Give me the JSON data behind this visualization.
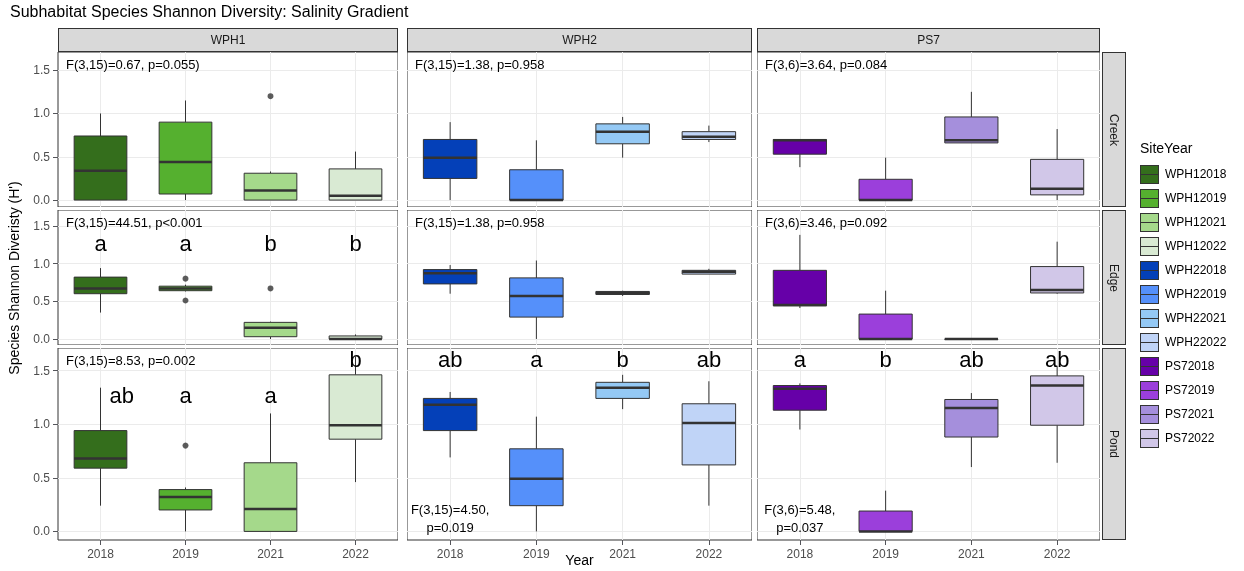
{
  "chart_data": [
    {
      "type": "box",
      "title": "Subhabitat Species Shannon Diversity: Salinity Gradient",
      "subtitle": "WPH1",
      "legend": "right",
      "legend_title": "SiteYear",
      "categories": [
        "2018",
        "2019",
        "2021",
        "2022"
      ],
      "ylim": [
        -0.08,
        1.71
      ],
      "yticks": [
        {
          "value": 0,
          "label": "0.0"
        },
        {
          "value": 0.5,
          "label": "0.5"
        },
        {
          "value": 1,
          "label": "1.0"
        },
        {
          "value": 1.5,
          "label": "1.5"
        }
      ],
      "grid": true,
      "tick_labels": "y",
      "series": [
        {
          "name": "WPH12018",
          "color": "#346e1c",
          "boxes": [
            {
              "low": 0,
              "q1": 0,
              "median": 0.34,
              "q3": 0.74,
              "high": 1.0
            },
            null,
            null,
            null
          ]
        },
        {
          "name": "WPH12019",
          "color": "#55b02f",
          "boxes": [
            null,
            {
              "low": 0,
              "q1": 0.07,
              "median": 0.44,
              "q3": 0.9,
              "high": 1.15
            },
            null,
            null
          ]
        },
        {
          "name": "WPH12021",
          "color": "#a5d98b",
          "boxes": [
            null,
            null,
            {
              "low": 0,
              "q1": 0,
              "median": 0.11,
              "q3": 0.31,
              "high": 0.33,
              "outliers": [
                1.2
              ]
            },
            null
          ]
        },
        {
          "name": "WPH12022",
          "color": "#d9ead3",
          "boxes": [
            null,
            null,
            null,
            {
              "low": 0,
              "q1": 0,
              "median": 0.05,
              "q3": 0.36,
              "high": 0.56
            }
          ]
        }
      ],
      "annotations": [
        "F(3,15)=0.67, p=0.055)"
      ]
    },
    {
      "type": "box",
      "subtitle": "WPH2",
      "legend": "right",
      "categories": [
        "2018",
        "2019",
        "2021",
        "2022"
      ],
      "ylim": [
        -0.08,
        1.71
      ],
      "yticks": [
        0,
        0.5,
        1,
        1.5
      ],
      "grid": true,
      "tick_labels": false,
      "series": [
        {
          "name": "WPH22018",
          "color": "#0440b8",
          "boxes": [
            {
              "low": 0,
              "q1": 0.25,
              "median": 0.49,
              "q3": 0.7,
              "high": 0.9
            },
            null,
            null,
            null
          ]
        },
        {
          "name": "WPH22019",
          "color": "#5590fa",
          "boxes": [
            null,
            {
              "low": 0,
              "q1": 0,
              "median": 0,
              "q3": 0.35,
              "high": 0.69
            },
            null,
            null
          ]
        },
        {
          "name": "WPH22021",
          "color": "#94c9f5",
          "boxes": [
            null,
            null,
            {
              "low": 0.49,
              "q1": 0.65,
              "median": 0.79,
              "q3": 0.88,
              "high": 0.96
            },
            null
          ]
        },
        {
          "name": "WPH22022",
          "color": "#c0d4f7",
          "boxes": [
            null,
            null,
            null,
            {
              "low": 0.67,
              "q1": 0.7,
              "median": 0.73,
              "q3": 0.79,
              "high": 0.86
            }
          ]
        }
      ],
      "annotations": [
        "F(3,15)=1.38, p=0.958"
      ]
    },
    {
      "type": "box",
      "subtitle": "PS7",
      "y2label": "Creek",
      "legend": "right",
      "categories": [
        "2018",
        "2019",
        "2021",
        "2022"
      ],
      "ylim": [
        -0.08,
        1.71
      ],
      "yticks": [
        0,
        0.5,
        1,
        1.5
      ],
      "grid": true,
      "tick_labels": false,
      "series": [
        {
          "name": "PS72018",
          "color": "#6600a8",
          "boxes": [
            {
              "low": 0.38,
              "q1": 0.53,
              "median": 0.69,
              "q3": 0.7,
              "high": 0.7
            },
            null,
            null,
            null
          ]
        },
        {
          "name": "PS72019",
          "color": "#9b3fdb",
          "boxes": [
            null,
            {
              "low": 0,
              "q1": 0,
              "median": 0,
              "q3": 0.24,
              "high": 0.49
            },
            null,
            null
          ]
        },
        {
          "name": "PS72021",
          "color": "#a58fdc",
          "boxes": [
            null,
            null,
            {
              "low": 0.66,
              "q1": 0.66,
              "median": 0.69,
              "q3": 0.96,
              "high": 1.25
            },
            null
          ]
        },
        {
          "name": "PS72022",
          "color": "#d1c7e8",
          "boxes": [
            null,
            null,
            null,
            {
              "low": 0,
              "q1": 0.06,
              "median": 0.13,
              "q3": 0.47,
              "high": 0.82
            }
          ]
        }
      ],
      "annotations": [
        "F(3,6)=3.64, p=0.084"
      ]
    },
    {
      "type": "box",
      "ylabel": "Species Shannon Diveristy (H')",
      "categories": [
        "2018",
        "2019",
        "2021",
        "2022"
      ],
      "ylim": [
        -0.08,
        1.71
      ],
      "yticks": [
        {
          "value": 0,
          "label": "0.0"
        },
        {
          "value": 0.5,
          "label": "0.5"
        },
        {
          "value": 1,
          "label": "1.0"
        },
        {
          "value": 1.5,
          "label": "1.5"
        }
      ],
      "grid": true,
      "tick_labels": "y",
      "series": [
        {
          "color": "#346e1c",
          "boxes": [
            {
              "low": 0.35,
              "q1": 0.6,
              "median": 0.67,
              "q3": 0.82,
              "high": 0.94
            },
            null,
            null,
            null
          ]
        },
        {
          "color": "#55b02f",
          "boxes": [
            null,
            {
              "low": 0.63,
              "q1": 0.64,
              "median": 0.67,
              "q3": 0.7,
              "high": 0.72,
              "outliers": [
                0.8,
                0.51
              ]
            },
            null,
            null
          ]
        },
        {
          "color": "#a5d98b",
          "boxes": [
            null,
            null,
            {
              "low": 0,
              "q1": 0.03,
              "median": 0.15,
              "q3": 0.22,
              "high": 0.23,
              "outliers": [
                0.67
              ]
            },
            null
          ]
        },
        {
          "color": "#d9ead3",
          "boxes": [
            null,
            null,
            null,
            {
              "low": 0,
              "q1": 0,
              "median": 0,
              "q3": 0.04,
              "high": 0.06
            }
          ]
        }
      ],
      "annotations": [
        "F(3,15)=44.51, p<0.001",
        "a",
        "a",
        "b",
        "b"
      ]
    },
    {
      "type": "box",
      "categories": [
        "2018",
        "2019",
        "2021",
        "2022"
      ],
      "ylim": [
        -0.08,
        1.71
      ],
      "yticks": [
        0,
        0.5,
        1,
        1.5
      ],
      "grid": true,
      "tick_labels": false,
      "series": [
        {
          "color": "#0440b8",
          "boxes": [
            {
              "low": 0.6,
              "q1": 0.73,
              "median": 0.87,
              "q3": 0.92,
              "high": 0.98
            },
            null,
            null,
            null
          ]
        },
        {
          "color": "#5590fa",
          "boxes": [
            null,
            {
              "low": 0,
              "q1": 0.29,
              "median": 0.57,
              "q3": 0.81,
              "high": 1.04
            },
            null,
            null
          ]
        },
        {
          "color": "#94c9f5",
          "boxes": [
            null,
            null,
            {
              "low": 0.57,
              "q1": 0.59,
              "median": 0.61,
              "q3": 0.63,
              "high": 0.64
            },
            null
          ]
        },
        {
          "color": "#c0d4f7",
          "boxes": [
            null,
            null,
            null,
            {
              "low": 0.86,
              "q1": 0.86,
              "median": 0.89,
              "q3": 0.91,
              "high": 0.93
            }
          ]
        }
      ],
      "annotations": [
        "F(3,15)=1.38, p=0.958"
      ]
    },
    {
      "type": "box",
      "y2label": "Edge",
      "categories": [
        "2018",
        "2019",
        "2021",
        "2022"
      ],
      "ylim": [
        -0.08,
        1.71
      ],
      "yticks": [
        0,
        0.5,
        1,
        1.5
      ],
      "grid": true,
      "tick_labels": false,
      "series": [
        {
          "color": "#6600a8",
          "boxes": [
            {
              "low": 0.41,
              "q1": 0.44,
              "median": 0.45,
              "q3": 0.91,
              "high": 1.38
            },
            null,
            null,
            null
          ]
        },
        {
          "color": "#9b3fdb",
          "boxes": [
            null,
            {
              "low": 0,
              "q1": 0,
              "median": 0,
              "q3": 0.33,
              "high": 0.64
            },
            null,
            null
          ]
        },
        {
          "color": "#a58fdc",
          "boxes": [
            null,
            null,
            {
              "low": 0,
              "q1": 0,
              "median": 0,
              "q3": 0,
              "high": 0
            },
            null
          ]
        },
        {
          "color": "#d1c7e8",
          "boxes": [
            null,
            null,
            null,
            {
              "low": 0.6,
              "q1": 0.61,
              "median": 0.65,
              "q3": 0.96,
              "high": 1.29
            }
          ]
        }
      ],
      "annotations": [
        "F(3,6)=3.46, p=0.092"
      ]
    },
    {
      "type": "box",
      "categories": [
        "2018",
        "2019",
        "2021",
        "2022"
      ],
      "ylim": [
        -0.08,
        1.71
      ],
      "yticks": [
        {
          "value": 0,
          "label": "0.0"
        },
        {
          "value": 0.5,
          "label": "0.5"
        },
        {
          "value": 1,
          "label": "1.0"
        },
        {
          "value": 1.5,
          "label": "1.5"
        }
      ],
      "grid": true,
      "series": [
        {
          "color": "#346e1c",
          "boxes": [
            {
              "low": 0.24,
              "q1": 0.59,
              "median": 0.68,
              "q3": 0.94,
              "high": 1.34
            },
            null,
            null,
            null
          ]
        },
        {
          "color": "#55b02f",
          "boxes": [
            null,
            {
              "low": 0,
              "q1": 0.2,
              "median": 0.32,
              "q3": 0.39,
              "high": 0.41,
              "outliers": [
                0.8
              ]
            },
            null,
            null
          ]
        },
        {
          "color": "#a5d98b",
          "boxes": [
            null,
            null,
            {
              "low": 0,
              "q1": 0,
              "median": 0.21,
              "q3": 0.64,
              "high": 1.1
            },
            null
          ]
        },
        {
          "color": "#d9ead3",
          "boxes": [
            null,
            null,
            null,
            {
              "low": 0.46,
              "q1": 0.86,
              "median": 0.99,
              "q3": 1.46,
              "high": 1.63
            }
          ]
        }
      ],
      "annotations": [
        "F(3,15)=8.53, p=0.002",
        "ab",
        "a",
        "a",
        "b"
      ]
    },
    {
      "type": "box",
      "xlabel": "Year",
      "categories": [
        "2018",
        "2019",
        "2021",
        "2022"
      ],
      "ylim": [
        -0.08,
        1.71
      ],
      "yticks": [
        0,
        0.5,
        1,
        1.5
      ],
      "grid": true,
      "tick_labels": "x",
      "series": [
        {
          "color": "#0440b8",
          "boxes": [
            {
              "low": 0.69,
              "q1": 0.94,
              "median": 1.18,
              "q3": 1.24,
              "high": 1.3
            },
            null,
            null,
            null
          ]
        },
        {
          "color": "#5590fa",
          "boxes": [
            null,
            {
              "low": 0,
              "q1": 0.24,
              "median": 0.49,
              "q3": 0.77,
              "high": 1.07
            },
            null,
            null
          ]
        },
        {
          "color": "#94c9f5",
          "boxes": [
            null,
            null,
            {
              "low": 1.14,
              "q1": 1.24,
              "median": 1.34,
              "q3": 1.39,
              "high": 1.46
            },
            null
          ]
        },
        {
          "color": "#c0d4f7",
          "boxes": [
            null,
            null,
            null,
            {
              "low": 0.24,
              "q1": 0.62,
              "median": 1.01,
              "q3": 1.19,
              "high": 1.4
            }
          ]
        }
      ],
      "annotations": [
        "F(3,15)=4.50,\np=0.019",
        "ab",
        "a",
        "b",
        "ab"
      ]
    },
    {
      "type": "box",
      "y2label": "Pond",
      "categories": [
        "2018",
        "2019",
        "2021",
        "2022"
      ],
      "ylim": [
        -0.08,
        1.71
      ],
      "yticks": [
        0,
        0.5,
        1,
        1.5
      ],
      "grid": true,
      "tick_labels": "x",
      "series": [
        {
          "color": "#6600a8",
          "boxes": [
            {
              "low": 0.95,
              "q1": 1.13,
              "median": 1.33,
              "q3": 1.36,
              "high": 1.38
            },
            null,
            null,
            null
          ]
        },
        {
          "color": "#9b3fdb",
          "boxes": [
            null,
            {
              "low": 0,
              "q1": 0,
              "median": 0,
              "q3": 0.19,
              "high": 0.38
            },
            null,
            null
          ]
        },
        {
          "color": "#a58fdc",
          "boxes": [
            null,
            null,
            {
              "low": 0.6,
              "q1": 0.88,
              "median": 1.15,
              "q3": 1.23,
              "high": 1.29
            },
            null
          ]
        },
        {
          "color": "#d1c7e8",
          "boxes": [
            null,
            null,
            null,
            {
              "low": 0.64,
              "q1": 0.99,
              "median": 1.36,
              "q3": 1.45,
              "high": 1.54
            }
          ]
        }
      ],
      "annotations": [
        "F(3,6)=5.48,\np=0.037",
        "a",
        "b",
        "ab",
        "ab"
      ]
    }
  ]
}
